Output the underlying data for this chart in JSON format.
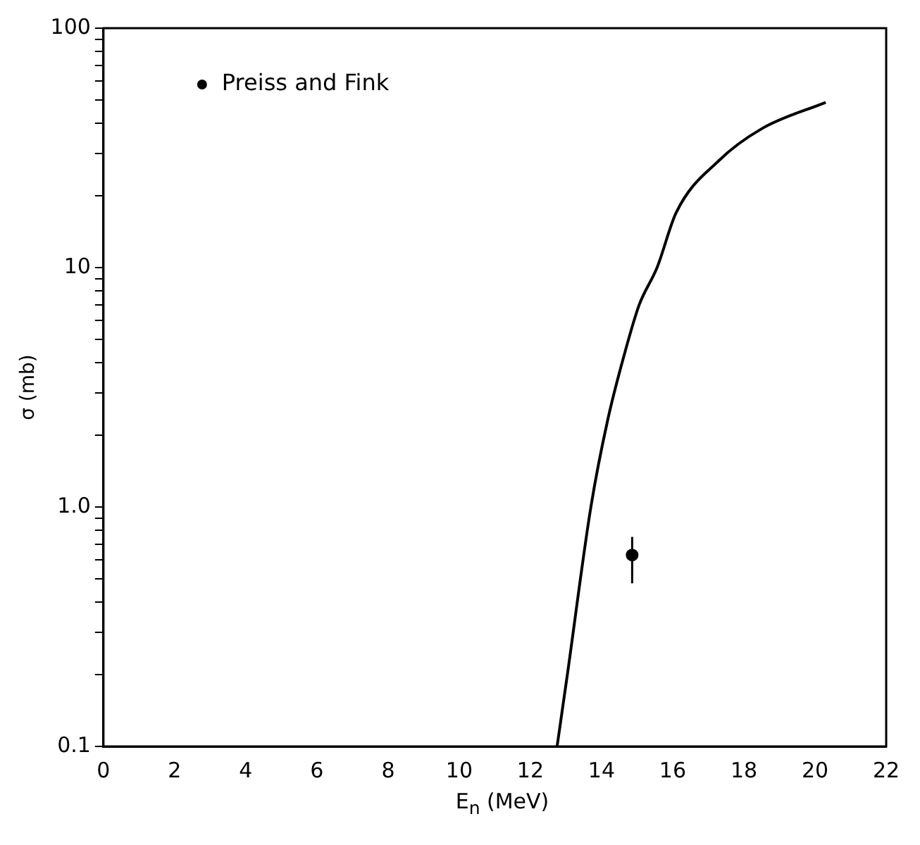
{
  "chart_data": {
    "type": "line",
    "xlabel": "E$_{n}$ (MeV)",
    "ylabel": "σ (mb)",
    "log": "y",
    "legend": "top left",
    "xlim": [
      0,
      22
    ],
    "xticks": [
      0,
      2,
      4,
      6,
      8,
      10,
      12,
      14,
      16,
      18,
      20,
      22
    ],
    "ylim": [
      0.1,
      100
    ],
    "yticks": [
      {
        "value": 0.1,
        "label": "0.1"
      },
      {
        "value": 0.2,
        "label": null
      },
      {
        "value": 0.3,
        "label": null
      },
      {
        "value": 0.4,
        "label": null
      },
      {
        "value": 0.5,
        "label": null
      },
      {
        "value": 0.6,
        "label": null
      },
      {
        "value": 0.7,
        "label": null
      },
      {
        "value": 0.8,
        "label": null
      },
      {
        "value": 0.9,
        "label": null
      },
      {
        "value": 1,
        "label": "1.0"
      },
      {
        "value": 2,
        "label": null
      },
      {
        "value": 3,
        "label": null
      },
      {
        "value": 4,
        "label": null
      },
      {
        "value": 5,
        "label": null
      },
      {
        "value": 6,
        "label": null
      },
      {
        "value": 7,
        "label": null
      },
      {
        "value": 8,
        "label": null
      },
      {
        "value": 9,
        "label": null
      },
      10,
      {
        "value": 20,
        "label": null
      },
      {
        "value": 30,
        "label": null
      },
      {
        "value": 40,
        "label": null
      },
      {
        "value": 50,
        "label": null
      },
      {
        "value": 60,
        "label": null
      },
      {
        "value": 70,
        "label": null
      },
      {
        "value": 80,
        "label": null
      },
      {
        "value": 90,
        "label": null
      },
      100
    ],
    "series": [
      {
        "color": "#000000",
        "marker": "none",
        "x": [
          12.75,
          13.04,
          13.7,
          14.17,
          14.67,
          15.06,
          15.56,
          16.1,
          17.3,
          18.5,
          20.3
        ],
        "values": [
          0.1,
          0.2,
          1.0,
          2.3,
          4.5,
          7.0,
          10,
          17,
          28,
          38,
          49
        ]
      },
      {
        "type": "scatter",
        "name": "Preiss and Fink",
        "color": "#000000",
        "marker": "circle",
        "x": [
          14.86
        ],
        "values": [
          0.63
        ],
        "errors": [
          [
            0.48,
            0.75
          ]
        ]
      }
    ]
  }
}
